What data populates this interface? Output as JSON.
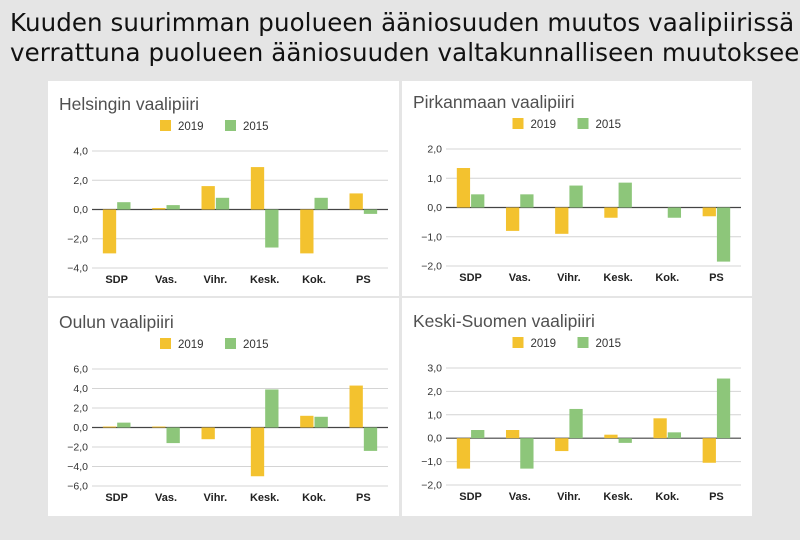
{
  "title_line1": "Kuuden suurimman puolueen ääniosuuden muutos vaalipiirissä",
  "title_line2": "verrattuna puolueen ääniosuuden valtakunnalliseen muutokseen",
  "colors": {
    "2019": "#f3c22f",
    "2015": "#8dc67a",
    "grid": "#d4d4d4",
    "panel_bg": "#ffffff",
    "page_bg": "#e5e5e5"
  },
  "chart_data": [
    {
      "type": "bar",
      "title": "Helsingin vaalipiiri",
      "categories": [
        "SDP",
        "Vas.",
        "Vihr.",
        "Kesk.",
        "Kok.",
        "PS"
      ],
      "series": [
        {
          "name": "2019",
          "values": [
            -3.0,
            0.1,
            1.6,
            2.9,
            -3.0,
            1.1
          ]
        },
        {
          "name": "2015",
          "values": [
            0.5,
            0.3,
            0.8,
            -2.6,
            0.8,
            -0.3
          ]
        }
      ],
      "ylim": [
        -4,
        4
      ],
      "yticks": [
        -4,
        -2,
        0,
        2,
        4
      ],
      "ytick_labels": [
        "−4,0",
        "−2,0",
        "0,0",
        "2,0",
        "4,0"
      ],
      "grid": true,
      "legend_position": "top"
    },
    {
      "type": "bar",
      "title": "Pirkanmaan vaalipiiri",
      "categories": [
        "SDP",
        "Vas.",
        "Vihr.",
        "Kesk.",
        "Kok.",
        "PS"
      ],
      "series": [
        {
          "name": "2019",
          "values": [
            1.35,
            -0.8,
            -0.9,
            -0.35,
            0.0,
            -0.3
          ]
        },
        {
          "name": "2015",
          "values": [
            0.45,
            0.45,
            0.75,
            0.85,
            -0.35,
            -1.85
          ]
        }
      ],
      "ylim": [
        -2,
        2
      ],
      "yticks": [
        -2,
        -1,
        0,
        1,
        2
      ],
      "ytick_labels": [
        "−2,0",
        "−1,0",
        "0,0",
        "1,0",
        "2,0"
      ],
      "grid": true,
      "legend_position": "top"
    },
    {
      "type": "bar",
      "title": "Oulun vaalipiiri",
      "categories": [
        "SDP",
        "Vas.",
        "Vihr.",
        "Kesk.",
        "Kok.",
        "PS"
      ],
      "series": [
        {
          "name": "2019",
          "values": [
            0.1,
            0.1,
            -1.2,
            -5.0,
            1.2,
            4.3
          ]
        },
        {
          "name": "2015",
          "values": [
            0.5,
            -1.6,
            0.0,
            3.9,
            1.1,
            -2.4
          ]
        }
      ],
      "ylim": [
        -6,
        6
      ],
      "yticks": [
        -6,
        -4,
        -2,
        0,
        2,
        4,
        6
      ],
      "ytick_labels": [
        "−6,0",
        "−4,0",
        "−2,0",
        "0,0",
        "2,0",
        "4,0",
        "6,0"
      ],
      "grid": true,
      "legend_position": "top"
    },
    {
      "type": "bar",
      "title": "Keski-Suomen vaalipiiri",
      "categories": [
        "SDP",
        "Vas.",
        "Vihr.",
        "Kesk.",
        "Kok.",
        "PS"
      ],
      "series": [
        {
          "name": "2019",
          "values": [
            -1.3,
            0.35,
            -0.55,
            0.15,
            0.85,
            -1.05
          ]
        },
        {
          "name": "2015",
          "values": [
            0.35,
            -1.3,
            1.25,
            -0.2,
            0.25,
            2.55
          ]
        }
      ],
      "ylim": [
        -2,
        3
      ],
      "yticks": [
        -2,
        -1,
        0,
        1,
        2,
        3
      ],
      "ytick_labels": [
        "−2,0",
        "−1,0",
        "0,0",
        "1,0",
        "2,0",
        "3,0"
      ],
      "grid": true,
      "legend_position": "top"
    }
  ]
}
